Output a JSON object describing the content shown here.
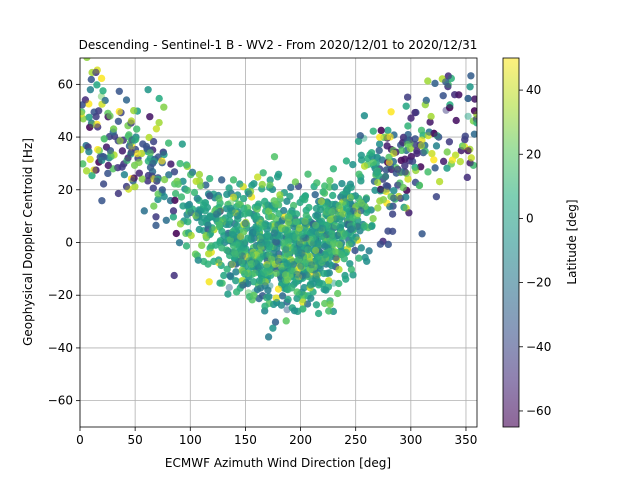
{
  "chart_data": {
    "type": "scatter",
    "title": "Descending - Sentinel-1 B - WV2 - From 2020/12/01 to 2020/12/31",
    "xlabel": "ECMWF Azimuth Wind Direction [deg]",
    "ylabel": "Geophysical Doppler Centroid [Hz]",
    "xlim": [
      0,
      360
    ],
    "ylim": [
      -70,
      70
    ],
    "xticks": [
      0,
      50,
      100,
      150,
      200,
      250,
      300,
      350
    ],
    "yticks": [
      -60,
      -40,
      -20,
      0,
      20,
      40,
      60
    ],
    "grid": true,
    "colormap": "viridis",
    "marker_alpha": 0.5,
    "colorbar": {
      "label": "Latitude [deg]",
      "range": [
        -65,
        50
      ],
      "ticks": [
        -60,
        -40,
        -20,
        0,
        20,
        40
      ]
    },
    "trend_description": "U-shaped cloud: high Doppler (~20 to 65 Hz) near 0-60 deg and 300-360 deg, minimum (~-30 to 20 Hz) around 180-200 deg",
    "series_model": {
      "center_points": [
        [
          0,
          45
        ],
        [
          20,
          42
        ],
        [
          40,
          38
        ],
        [
          60,
          32
        ],
        [
          80,
          24
        ],
        [
          100,
          14
        ],
        [
          120,
          6
        ],
        [
          140,
          1
        ],
        [
          160,
          -2
        ],
        [
          180,
          -4
        ],
        [
          200,
          -3
        ],
        [
          220,
          0
        ],
        [
          240,
          6
        ],
        [
          260,
          16
        ],
        [
          280,
          26
        ],
        [
          300,
          35
        ],
        [
          320,
          42
        ],
        [
          340,
          45
        ],
        [
          360,
          46
        ]
      ],
      "spread_hz": [
        [
          0,
          12
        ],
        [
          60,
          10
        ],
        [
          100,
          10
        ],
        [
          180,
          11
        ],
        [
          260,
          10
        ],
        [
          320,
          12
        ],
        [
          360,
          12
        ]
      ],
      "sample_count": 4200
    }
  }
}
